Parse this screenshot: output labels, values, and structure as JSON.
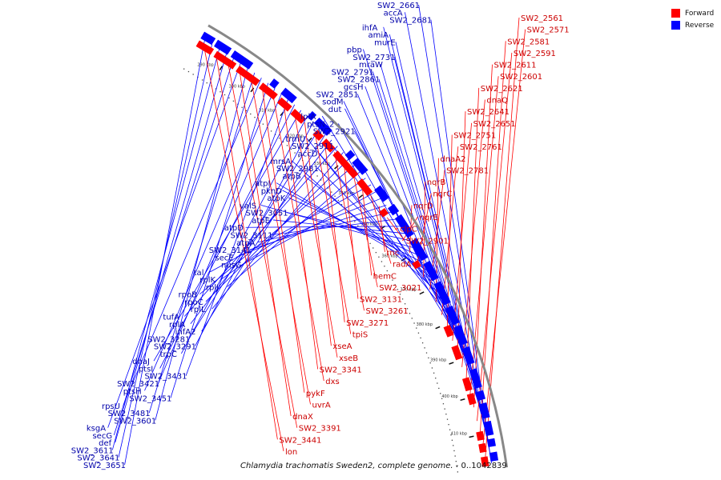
{
  "legend": {
    "forward_label": "Forward",
    "reverse_label": "Reverse",
    "forward_color": "#ff0000",
    "reverse_color": "#0000ff"
  },
  "caption": {
    "title": "Chlamydia trachomatis Sweden2, complete genome.",
    "range": "- 0..1042839"
  },
  "colors": {
    "backbone": "#888888",
    "forward_line": "#ff0000",
    "reverse_line": "#0000ff",
    "tick": "#111111"
  },
  "ticks": [
    "290 kbp",
    "300 kbp",
    "310 kbp",
    "320 kbp",
    "330 kbp",
    "340 kbp",
    "350 kbp",
    "360 kbp",
    "370 kbp",
    "380 kbp",
    "390 kbp",
    "400 kbp",
    "410 kbp"
  ],
  "reverse_genes": [
    "SW2_2661",
    "accA",
    "SW2_2681",
    "ihfA",
    "amiA",
    "murE",
    "pbp",
    "SW2_2731",
    "mraW",
    "SW2_2791",
    "SW2_2861",
    "gcsH",
    "SW2_2851",
    "sodM",
    "dut",
    "lplA",
    "ptsN_2",
    "SW2_2921",
    "trmU",
    "SW2_2911",
    "accD",
    "mrsA",
    "SW2_2981",
    "atpB",
    "atpI",
    "pknD",
    "atpK",
    "valS",
    "SW2_3051",
    "atpE",
    "atpD",
    "SW2_3111",
    "atpA",
    "SW2_3141",
    "secE",
    "nusG",
    "tal",
    "rplK",
    "rplJ",
    "rpoB",
    "rpoC",
    "rplL",
    "tufA",
    "rplA",
    "infA2",
    "SW2_3281",
    "SW2_3291",
    "trpC",
    "dnaJ",
    "ptsI",
    "SW2_3431",
    "SW2_3421",
    "ptsH",
    "SW2_3451",
    "rpsU",
    "SW2_3481",
    "SW2_3601",
    "ksgA",
    "secG",
    "def",
    "SW2_3611",
    "SW2_3641",
    "SW2_3651"
  ],
  "forward_genes": [
    "SW2_2561",
    "SW2_2571",
    "SW2_2581",
    "SW2_2591",
    "SW2_2611",
    "SW2_2601",
    "SW2_2621",
    "dnaQ",
    "SW2_2641",
    "SW2_2651",
    "SW2_2751",
    "SW2_2761",
    "dnaA2",
    "SW2_2781",
    "nqrB",
    "nqrC",
    "nqrD",
    "nqrE",
    "clpC",
    "SW2_2901",
    "rnc",
    "radA",
    "hemC",
    "SW2_3021",
    "SW2_3131",
    "SW2_3261",
    "SW2_3271",
    "tpiS",
    "xseA",
    "xseB",
    "SW2_3341",
    "dxs",
    "pykF",
    "uvrA",
    "dnaX",
    "SW2_3391",
    "SW2_3441",
    "lon"
  ]
}
